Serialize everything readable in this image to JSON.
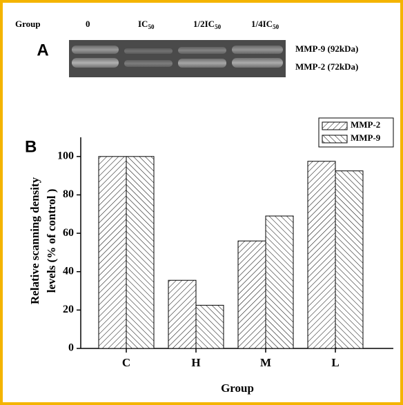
{
  "gel": {
    "panel_label": "A",
    "header": {
      "label": "Group",
      "lanes": [
        {
          "text": "0"
        },
        {
          "text": "IC",
          "sub": "50"
        },
        {
          "text": "1/2IC",
          "sub": "50"
        },
        {
          "text": "1/4IC",
          "sub": "50"
        }
      ]
    },
    "bands": [
      "MMP-9 (92kDa)",
      "MMP-2 (72kDa)"
    ]
  },
  "chart_data": {
    "type": "bar",
    "panel_label": "B",
    "x_label": "Group",
    "y_label": [
      "Relative scanning density",
      "levels (% of control )"
    ],
    "categories": [
      "C",
      "H",
      "M",
      "L"
    ],
    "series": [
      {
        "name": "MMP-2",
        "color": "#000000",
        "values": [
          100,
          35.5,
          56,
          97.5
        ]
      },
      {
        "name": "MMP-9",
        "color": "#000000",
        "values": [
          100,
          22.5,
          69,
          92.5
        ]
      }
    ],
    "ylim": [
      0,
      110
    ],
    "yticks": [
      0,
      20,
      40,
      60,
      80,
      100
    ],
    "legend": "top-right"
  }
}
